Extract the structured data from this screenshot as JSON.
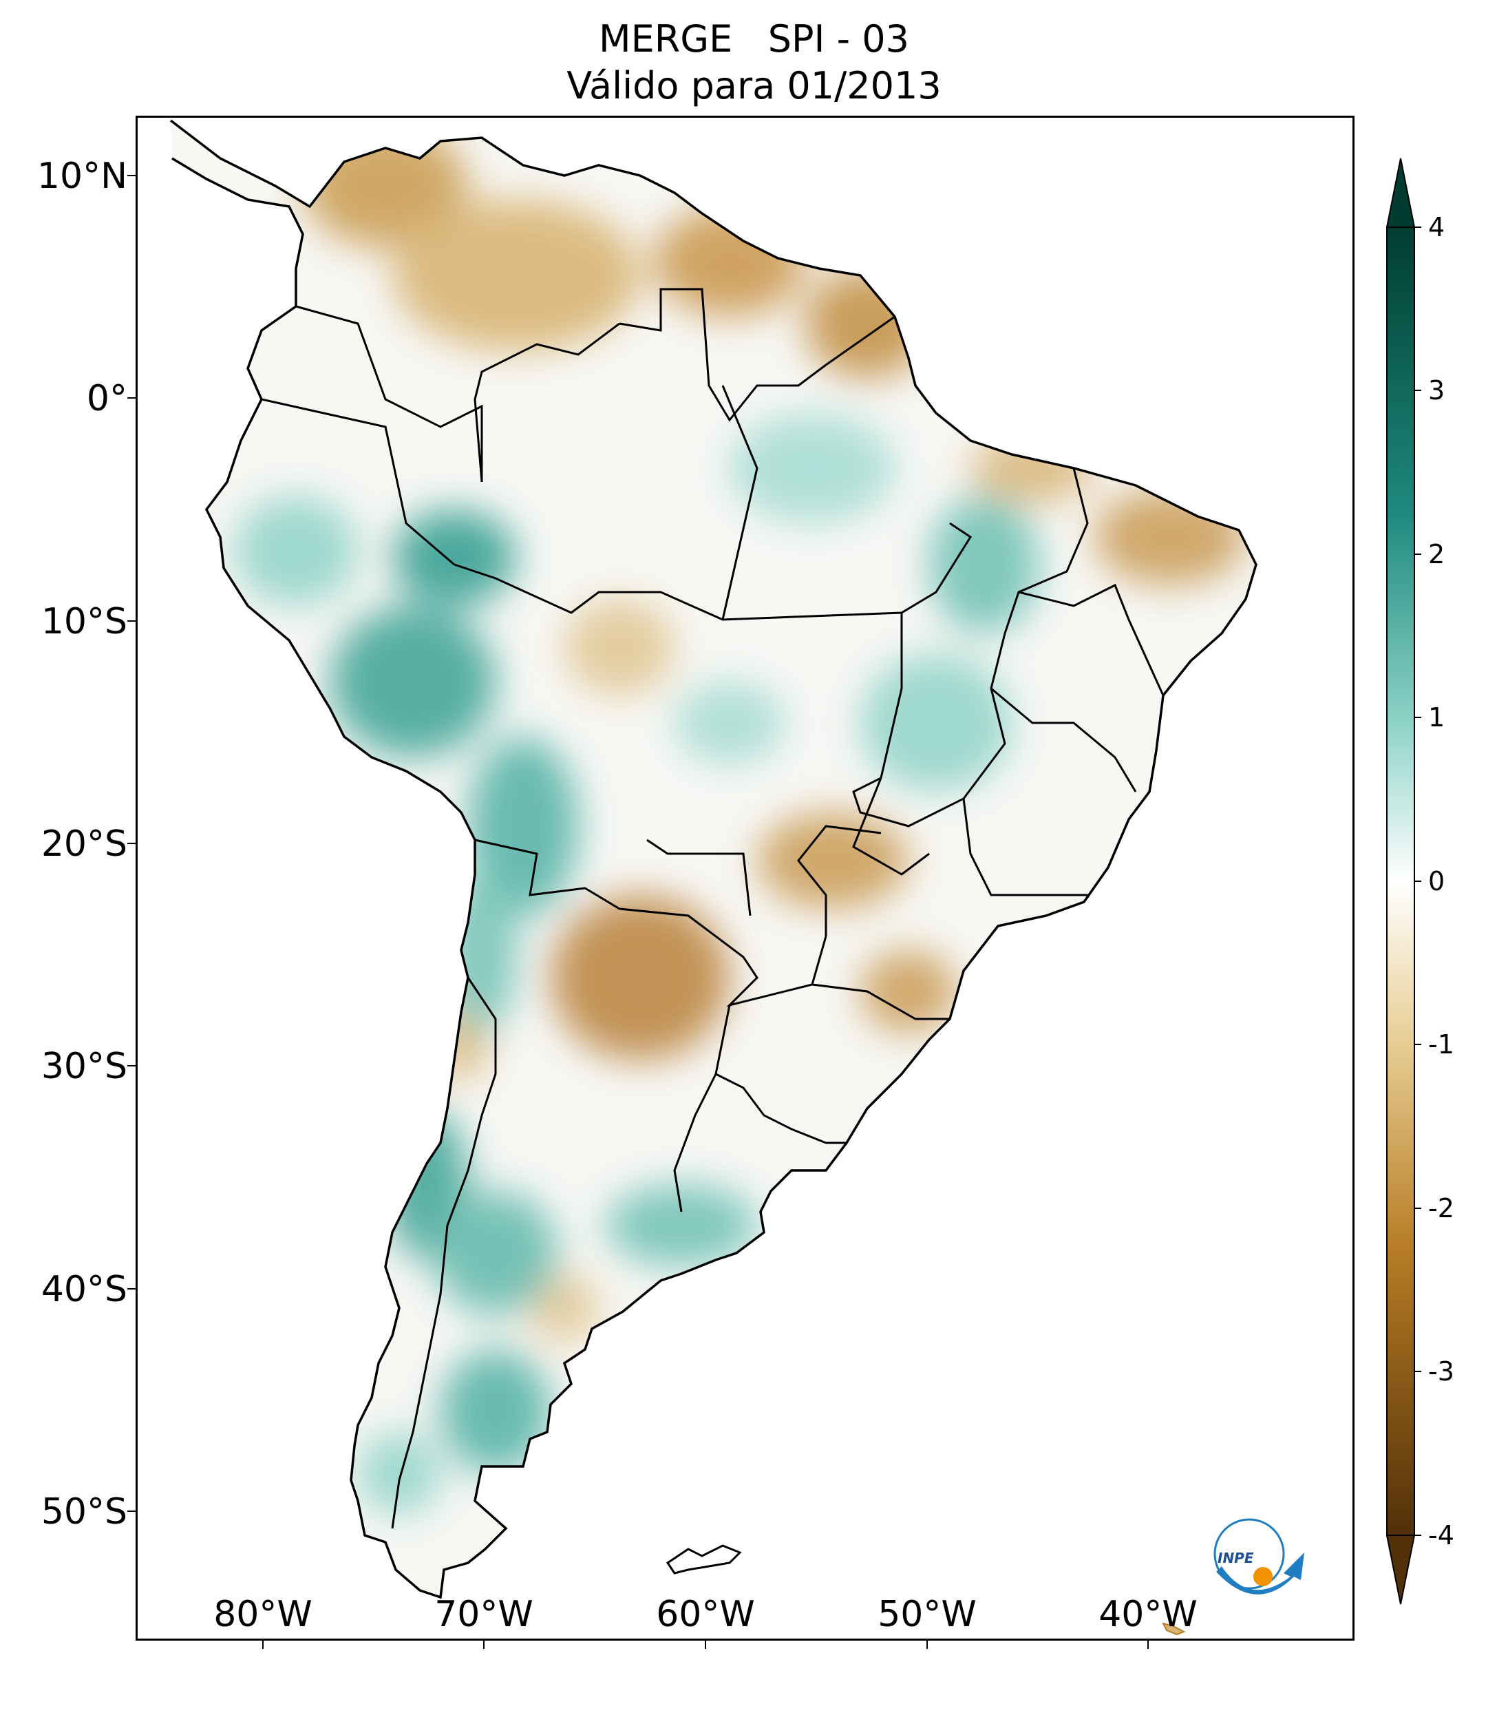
{
  "title": {
    "line1": "MERGE   SPI - 03",
    "line2": "Válido para 01/2013"
  },
  "map": {
    "region": "South America",
    "variable": "SPI - 03",
    "lat_ticks": [
      "10°N",
      "0°",
      "10°S",
      "20°S",
      "30°S",
      "40°S",
      "50°S"
    ],
    "lon_ticks": [
      "80°W",
      "70°W",
      "60°W",
      "50°W",
      "40°W"
    ]
  },
  "colorbar": {
    "ticks": [
      "4",
      "3",
      "2",
      "1",
      "0",
      "-1",
      "-2",
      "-3",
      "-4"
    ],
    "colors": {
      "max": "#003d30",
      "high": "#1f8a7e",
      "mid_high": "#8fd3c8",
      "zero": "#ffffff",
      "mid_low": "#e8cf97",
      "low": "#b77d25",
      "min": "#523008"
    }
  },
  "logo": {
    "text": "INPE",
    "colors": {
      "blue": "#1f7dc2",
      "orange": "#f39200"
    }
  }
}
